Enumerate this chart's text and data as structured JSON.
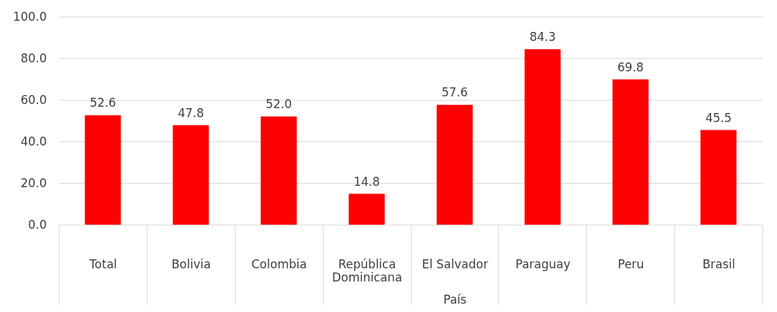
{
  "chart_data": {
    "type": "bar",
    "xlabel": "País",
    "categories": [
      "Total",
      "Bolivia",
      "Colombia",
      "República Dominicana",
      "El Salvador",
      "Paraguay",
      "Peru",
      "Brasil"
    ],
    "values": [
      52.6,
      47.8,
      52.0,
      14.8,
      57.6,
      84.3,
      69.8,
      45.5
    ],
    "value_labels": [
      "52.6",
      "47.8",
      "52.0",
      "14.8",
      "57.6",
      "84.3",
      "69.8",
      "45.5"
    ],
    "color": "#ff0000",
    "ylim": [
      0,
      100
    ],
    "yticks": [
      {
        "value": 0,
        "label": "0.0"
      },
      {
        "value": 20,
        "label": "20.0"
      },
      {
        "value": 40,
        "label": "40.0"
      },
      {
        "value": 60,
        "label": "60.0"
      },
      {
        "value": 80,
        "label": "80.0"
      },
      {
        "value": 100,
        "label": "100.0"
      }
    ],
    "grid": "y"
  }
}
